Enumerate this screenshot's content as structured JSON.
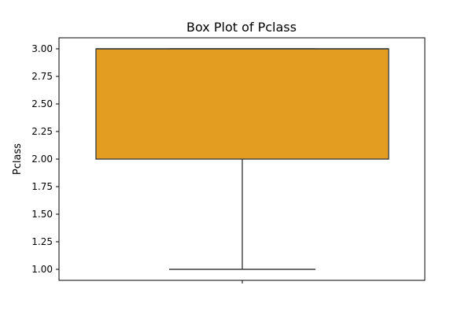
{
  "chart_data": {
    "type": "box",
    "title": "Box Plot of Pclass",
    "xlabel": "",
    "ylabel": "Pclass",
    "ylim": [
      0.9,
      3.1
    ],
    "yticks": [
      1.0,
      1.25,
      1.5,
      1.75,
      2.0,
      2.25,
      2.5,
      2.75,
      3.0
    ],
    "ytick_labels": [
      "1.00",
      "1.25",
      "1.50",
      "1.75",
      "2.00",
      "2.25",
      "2.50",
      "2.75",
      "3.00"
    ],
    "grid": false,
    "box": {
      "whisker_low": 1.0,
      "q1": 2.0,
      "median": 3.0,
      "q3": 3.0,
      "whisker_high": 3.0,
      "color": "#e39e21",
      "edge_color": "#3f3f3f"
    }
  }
}
